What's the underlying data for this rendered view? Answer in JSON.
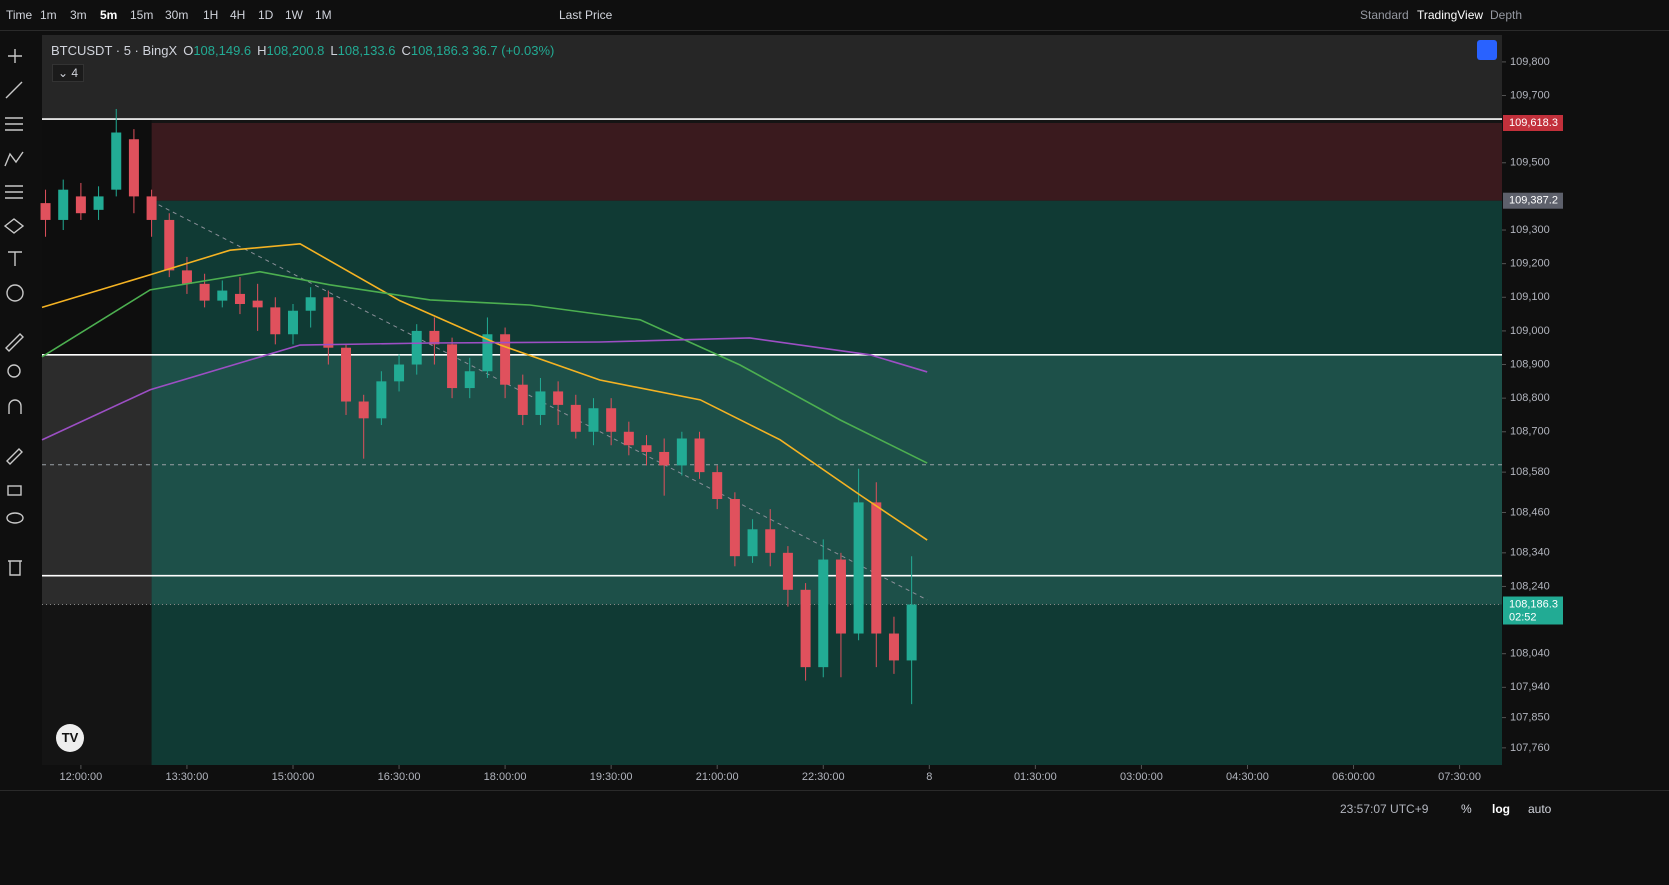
{
  "toolbar": {
    "items": [
      "Time",
      "1m",
      "3m",
      "5m",
      "15m",
      "30m",
      "1H",
      "4H",
      "1D",
      "1W",
      "1M"
    ],
    "price_source": "Last Price",
    "modes": [
      "Standard",
      "TradingView",
      "Depth"
    ]
  },
  "legend": {
    "symbol": "BTCUSDT · 5 · BingX",
    "items": [
      {
        "key": "O",
        "value": "108,149.6"
      },
      {
        "key": "H",
        "value": "108,200.8"
      },
      {
        "key": "L",
        "value": "108,133.6"
      },
      {
        "key": "C",
        "value": "108,186.3"
      }
    ],
    "change": "36.7 (+0.03%)",
    "indicators": "4"
  },
  "chart_data": {
    "type": "candlestick",
    "xlim": [
      11.45,
      32.1
    ],
    "ylim": [
      107709,
      109880
    ],
    "xticks": [
      {
        "value": 12,
        "label": "12:00:00"
      },
      {
        "value": 13.5,
        "label": "13:30:00"
      },
      {
        "value": 15,
        "label": "15:00:00"
      },
      {
        "value": 16.5,
        "label": "16:30:00"
      },
      {
        "value": 18,
        "label": "18:00:00"
      },
      {
        "value": 19.5,
        "label": "19:30:00"
      },
      {
        "value": 21,
        "label": "21:00:00"
      },
      {
        "value": 22.5,
        "label": "22:30:00"
      },
      {
        "value": 24,
        "label": "8"
      },
      {
        "value": 25.5,
        "label": "01:30:00"
      },
      {
        "value": 27,
        "label": "03:00:00"
      },
      {
        "value": 28.5,
        "label": "04:30:00"
      },
      {
        "value": 30,
        "label": "06:00:00"
      },
      {
        "value": 31.5,
        "label": "07:30:00"
      }
    ],
    "yticks": [
      {
        "value": 109800,
        "label": "109,800"
      },
      {
        "value": 109700,
        "label": "109,700"
      },
      {
        "value": 109500,
        "label": "109,500"
      },
      {
        "value": 109300,
        "label": "109,300"
      },
      {
        "value": 109200,
        "label": "109,200"
      },
      {
        "value": 109100,
        "label": "109,100"
      },
      {
        "value": 109000,
        "label": "109,000"
      },
      {
        "value": 108900,
        "label": "108,900"
      },
      {
        "value": 108800,
        "label": "108,800"
      },
      {
        "value": 108700,
        "label": "108,700"
      },
      {
        "value": 108580,
        "label": "108,580"
      },
      {
        "value": 108460,
        "label": "108,460"
      },
      {
        "value": 108340,
        "label": "108,340"
      },
      {
        "value": 108240,
        "label": "108,240"
      },
      {
        "value": 108040,
        "label": "108,040"
      },
      {
        "value": 107940,
        "label": "107,940"
      },
      {
        "value": 107850,
        "label": "107,850"
      },
      {
        "value": 107760,
        "label": "107,760"
      }
    ],
    "zones": [
      {
        "x": [
          11.45,
          32.1
        ],
        "values": [
          109880,
          109630
        ],
        "color": "#262626"
      },
      {
        "x": [
          13.0,
          32.1
        ],
        "values": [
          109618.3,
          109387.2
        ],
        "color": "#3a1a1e"
      },
      {
        "x": [
          13.0,
          32.1
        ],
        "values": [
          109387.2,
          107709
        ],
        "color": "#103a34"
      },
      {
        "x": [
          13.0,
          32.1
        ],
        "values": [
          108929,
          108186.3
        ],
        "color": "#1d5049"
      },
      {
        "x": [
          11.45,
          13.0
        ],
        "values": [
          109630,
          108929
        ],
        "color": "#0e0e0e"
      },
      {
        "x": [
          11.45,
          13.0
        ],
        "values": [
          108929,
          108186.3
        ],
        "color": "#2c2c2c"
      }
    ],
    "levels": [
      {
        "value": 109630,
        "color": "#ffffff",
        "style": "solid"
      },
      {
        "value": 108929,
        "color": "#ffffff",
        "style": "solid"
      },
      {
        "value": 108272,
        "color": "#ffffff",
        "style": "solid"
      },
      {
        "value": 108602,
        "color": "#9aa0a6",
        "style": "dashed"
      },
      {
        "value": 108186.3,
        "color": "#888888",
        "style": "dotted"
      }
    ],
    "trendline": {
      "x": [
        13.1,
        23.97
      ],
      "values": [
        109375,
        108200
      ],
      "color": "#8a8f98"
    },
    "up_color": "#22ab94",
    "down_color": "#e0515d",
    "candles": {
      "x": [
        11.5,
        11.75,
        12,
        12.25,
        12.5,
        12.75,
        13,
        13.25,
        13.5,
        13.75,
        14,
        14.25,
        14.5,
        14.75,
        15,
        15.25,
        15.5,
        15.75,
        16,
        16.25,
        16.5,
        16.75,
        17,
        17.25,
        17.5,
        17.75,
        18,
        18.25,
        18.5,
        18.75,
        19,
        19.25,
        19.5,
        19.75,
        20,
        20.25,
        20.5,
        20.75,
        21,
        21.25,
        21.5,
        21.75,
        22,
        22.25,
        22.5,
        22.75,
        23,
        23.25,
        23.5,
        23.75
      ],
      "open": [
        109380,
        109330,
        109400,
        109360,
        109420,
        109570,
        109400,
        109330,
        109180,
        109140,
        109090,
        109110,
        109090,
        109070,
        108990,
        109060,
        109100,
        108950,
        108790,
        108740,
        108850,
        108900,
        109000,
        108960,
        108830,
        108880,
        108990,
        108840,
        108750,
        108820,
        108780,
        108700,
        108770,
        108700,
        108660,
        108640,
        108600,
        108680,
        108580,
        108500,
        108330,
        108410,
        108340,
        108230,
        108000,
        108320,
        108100,
        108490,
        108100,
        108020
      ],
      "high": [
        109420,
        109450,
        109440,
        109430,
        109660,
        109600,
        109420,
        109350,
        109220,
        109170,
        109150,
        109160,
        109140,
        109100,
        109080,
        109130,
        109120,
        108960,
        108810,
        108880,
        108930,
        109020,
        109040,
        108980,
        108920,
        109040,
        109010,
        108870,
        108860,
        108850,
        108810,
        108800,
        108800,
        108730,
        108690,
        108680,
        108700,
        108700,
        108600,
        108520,
        108440,
        108470,
        108360,
        108250,
        108380,
        108340,
        108590,
        108550,
        108150,
        108330
      ],
      "low": [
        109280,
        109300,
        109330,
        109330,
        109400,
        109350,
        109280,
        109160,
        109110,
        109070,
        109070,
        109050,
        109000,
        108960,
        108960,
        109010,
        108900,
        108750,
        108620,
        108720,
        108820,
        108870,
        108900,
        108800,
        108800,
        108860,
        108800,
        108720,
        108720,
        108720,
        108680,
        108660,
        108660,
        108630,
        108600,
        108510,
        108570,
        108560,
        108470,
        108300,
        108310,
        108300,
        108180,
        107960,
        107970,
        107970,
        108080,
        108000,
        107980,
        107890
      ],
      "close": [
        109330,
        109420,
        109350,
        109400,
        109590,
        109400,
        109330,
        109180,
        109140,
        109090,
        109120,
        109080,
        109070,
        108990,
        109060,
        109100,
        108950,
        108790,
        108740,
        108850,
        108900,
        109000,
        108960,
        108830,
        108880,
        108990,
        108840,
        108750,
        108820,
        108780,
        108700,
        108770,
        108700,
        108660,
        108640,
        108600,
        108680,
        108580,
        108500,
        108330,
        108410,
        108340,
        108230,
        108000,
        108320,
        108100,
        108490,
        108100,
        108020,
        108186.3
      ]
    },
    "lines": [
      {
        "color": "#f5b323",
        "x": [
          11.45,
          12.98,
          14.11,
          15.1,
          16.51,
          17.93,
          19.34,
          20.76,
          21.89,
          23.02,
          23.97
        ],
        "values": [
          109070,
          109167,
          109240,
          109259,
          109090,
          108958,
          108854,
          108795,
          108676,
          108512,
          108378
        ]
      },
      {
        "color": "#4caf50",
        "x": [
          11.45,
          12.98,
          14.53,
          15.52,
          16.94,
          18.35,
          19.91,
          21.32,
          22.74,
          23.97
        ],
        "values": [
          108923,
          109122,
          109176,
          109137,
          109092,
          109077,
          109033,
          108899,
          108735,
          108607
        ]
      },
      {
        "color": "#9c4fc4",
        "x": [
          11.45,
          12.98,
          15.1,
          16.94,
          19.34,
          21.46,
          23.16,
          23.97
        ],
        "values": [
          108676,
          108825,
          108958,
          108964,
          108967,
          108979,
          108929,
          108878
        ]
      }
    ],
    "price_labels": [
      {
        "value": 109618.3,
        "label": "109,618.3",
        "color": "#c2303b"
      },
      {
        "value": 109387.2,
        "label": "109,387.2",
        "color": "#5d606b"
      },
      {
        "value": 108186.3,
        "label": "108,186.3",
        "color": "#22ab94",
        "countdown": "02:52"
      }
    ]
  },
  "footer": {
    "clock": "23:57:07 UTC+9",
    "buttons": [
      "%",
      "log",
      "auto"
    ]
  }
}
